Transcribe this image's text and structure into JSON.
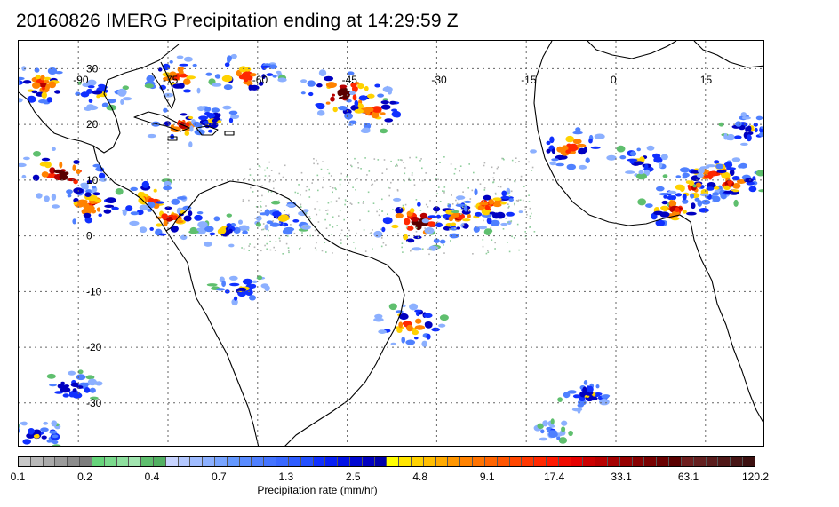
{
  "title": "20160826 IMERG Precipitation ending at 14:29:59 Z",
  "map": {
    "lon_range": [
      -100,
      25
    ],
    "lat_range": [
      -38,
      35
    ],
    "lon_ticks": [
      {
        "value": -90,
        "label": "-90"
      },
      {
        "value": -75,
        "label": "-75"
      },
      {
        "value": -60,
        "label": "-60"
      },
      {
        "value": -45,
        "label": "-45"
      },
      {
        "value": -30,
        "label": "-30"
      },
      {
        "value": -15,
        "label": "-15"
      },
      {
        "value": 0,
        "label": "0"
      },
      {
        "value": 15,
        "label": "15"
      }
    ],
    "lat_ticks": [
      {
        "value": 30,
        "label": "30"
      },
      {
        "value": 20,
        "label": "20"
      },
      {
        "value": 10,
        "label": "10"
      },
      {
        "value": 0,
        "label": "0"
      },
      {
        "value": -10,
        "label": "-10"
      },
      {
        "value": -20,
        "label": "-20"
      },
      {
        "value": -30,
        "label": "-30"
      }
    ],
    "gridlines": true
  },
  "colorbar": {
    "title": "Precipitation rate (mm/hr)",
    "labels": [
      "0.1",
      "0.2",
      "0.4",
      "0.7",
      "1.3",
      "2.5",
      "4.8",
      "9.1",
      "17.4",
      "33.1",
      "63.1",
      "120.2"
    ],
    "colors": [
      "#c8c8c8",
      "#b9b9b9",
      "#aaaaaa",
      "#9b9b9b",
      "#8c8c8c",
      "#7d7d7d",
      "#66d47a",
      "#7ad98c",
      "#8edf9e",
      "#a2e5b0",
      "#5fbf6e",
      "#52b062",
      "#c8d4ff",
      "#b4c8ff",
      "#a0bcff",
      "#8cb0ff",
      "#78a4ff",
      "#6498ff",
      "#5a8cff",
      "#4f80ff",
      "#4474ff",
      "#3968ff",
      "#2e5cff",
      "#2350ff",
      "#1030ff",
      "#0820f5",
      "#0010e6",
      "#0008d2",
      "#0000c0",
      "#0000aa",
      "#ffff00",
      "#ffe600",
      "#ffd200",
      "#ffbe00",
      "#ffaa00",
      "#ff9600",
      "#ff8200",
      "#ff7300",
      "#ff6400",
      "#ff5500",
      "#ff4600",
      "#ff3700",
      "#ff2800",
      "#ff1900",
      "#f00a00",
      "#e60000",
      "#cc0000",
      "#b80000",
      "#a50000",
      "#960000",
      "#870000",
      "#780000",
      "#690000",
      "#5a0000",
      "#6e1e1e",
      "#642020",
      "#5a1c1c",
      "#501818",
      "#461414",
      "#3c1010"
    ]
  }
}
